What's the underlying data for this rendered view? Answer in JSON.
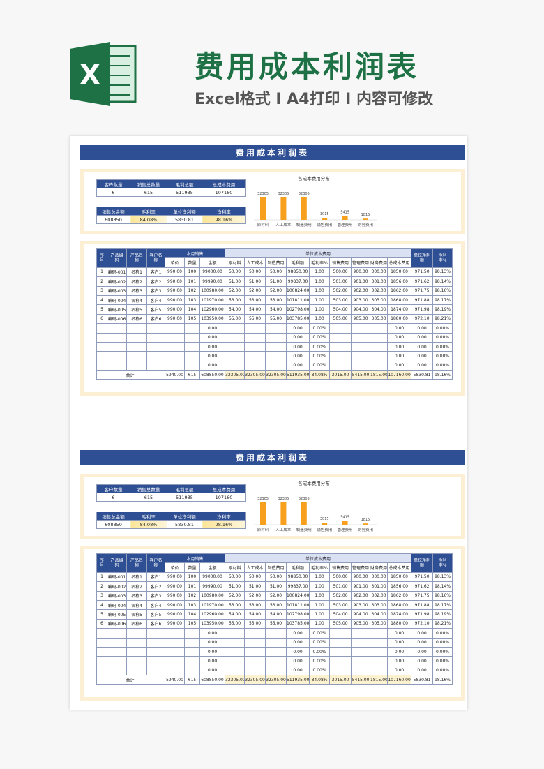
{
  "header": {
    "logo": "X",
    "title": "费用成本利润表",
    "subtitle": "Excel格式 I A4打印 I 内容可修改"
  },
  "chart_data": {
    "type": "bar",
    "title": "各成本费用分布",
    "categories": [
      "原材料",
      "人工成本",
      "制造费用",
      "销售费用",
      "管理费用",
      "财务费用"
    ],
    "values": [
      32305,
      32305,
      32305,
      3015,
      5415,
      1815
    ],
    "color": "#f7a01d"
  },
  "sheet": {
    "title": "费用成本利润表",
    "summary": [
      {
        "headers": [
          "客户数量",
          "销售总数量",
          "毛利总额",
          "总成本费用"
        ],
        "values": [
          "6",
          "615",
          "511935",
          "107160"
        ]
      },
      {
        "headers": [
          "销售总金额",
          "毛利率",
          "单位净利额",
          "净利率"
        ],
        "values": [
          "608850",
          "84.08%",
          "5830.81",
          "98.16%"
        ]
      }
    ],
    "table": {
      "columns": [
        {
          "label": "序号"
        },
        {
          "label": "产品编码"
        },
        {
          "label": "产品名称"
        },
        {
          "label": "客户名称"
        },
        {
          "group": "本月销售",
          "columns": [
            "单价",
            "数量",
            "金额"
          ]
        },
        {
          "group": "单位成本费用",
          "columns": [
            "原材料",
            "人工成本",
            "制造费用",
            "毛利额",
            "毛利率%",
            "销售费用",
            "管理费用",
            "财务费用",
            "总成本费用"
          ]
        },
        {
          "label": "单位净利额"
        },
        {
          "label": "净利率%"
        }
      ],
      "rows": [
        [
          "1",
          "编码-001",
          "名称1",
          "客户1",
          "990.00",
          "100",
          "99000.00",
          "50.00",
          "50.00",
          "50.00",
          "98850.00",
          "1.00",
          "500.00",
          "900.00",
          "300.00",
          "1850.00",
          "971.50",
          "98.13%"
        ],
        [
          "2",
          "编码-002",
          "名称2",
          "客户2",
          "990.00",
          "101",
          "99990.00",
          "51.00",
          "51.00",
          "51.00",
          "99837.00",
          "1.00",
          "501.00",
          "901.00",
          "301.00",
          "1856.00",
          "971.62",
          "98.14%"
        ],
        [
          "3",
          "编码-003",
          "名称3",
          "客户3",
          "990.00",
          "102",
          "100980.00",
          "52.00",
          "52.00",
          "52.00",
          "100824.00",
          "1.00",
          "502.00",
          "902.00",
          "302.00",
          "1862.00",
          "971.75",
          "98.16%"
        ],
        [
          "4",
          "编码-004",
          "名称4",
          "客户4",
          "990.00",
          "103",
          "101970.00",
          "53.00",
          "53.00",
          "53.00",
          "101811.00",
          "1.00",
          "503.00",
          "903.00",
          "303.00",
          "1868.00",
          "971.88",
          "98.17%"
        ],
        [
          "5",
          "编码-005",
          "名称5",
          "客户5",
          "990.00",
          "104",
          "102960.00",
          "54.00",
          "54.00",
          "54.00",
          "102798.00",
          "1.00",
          "504.00",
          "904.00",
          "304.00",
          "1874.00",
          "971.98",
          "98.19%"
        ],
        [
          "6",
          "编码-006",
          "名称6",
          "客户6",
          "990.00",
          "105",
          "103950.00",
          "55.00",
          "55.00",
          "55.00",
          "103785.00",
          "1.00",
          "505.00",
          "905.00",
          "305.00",
          "1880.00",
          "972.10",
          "98.21%"
        ],
        [
          null,
          null,
          null,
          null,
          null,
          null,
          "0.00",
          null,
          null,
          null,
          "0.00",
          "0.00%",
          null,
          null,
          null,
          "0.00",
          "0.00",
          "0.00%"
        ],
        [
          null,
          null,
          null,
          null,
          null,
          null,
          "0.00",
          null,
          null,
          null,
          "0.00",
          "0.00%",
          null,
          null,
          null,
          "0.00",
          "0.00",
          "0.00%"
        ],
        [
          null,
          null,
          null,
          null,
          null,
          null,
          "0.00",
          null,
          null,
          null,
          "0.00",
          "0.00%",
          null,
          null,
          null,
          "0.00",
          "0.00",
          "0.00%"
        ],
        [
          null,
          null,
          null,
          null,
          null,
          null,
          "0.00",
          null,
          null,
          null,
          "0.00",
          "0.00%",
          null,
          null,
          null,
          "0.00",
          "0.00",
          "0.00%"
        ],
        [
          null,
          null,
          null,
          null,
          null,
          null,
          "0.00",
          null,
          null,
          null,
          "0.00",
          "0.00%",
          null,
          null,
          null,
          "0.00",
          "0.00",
          "0.00%"
        ]
      ],
      "total": {
        "label": "合计:",
        "values": [
          "5940.00",
          "615",
          "608850.00",
          "32305.00",
          "32305.00",
          "32305.00",
          "511935.00",
          "84.08%",
          "3015.00",
          "5415.00",
          "1815.00",
          "107160.00",
          "5830.81",
          "98.16%"
        ]
      }
    }
  }
}
